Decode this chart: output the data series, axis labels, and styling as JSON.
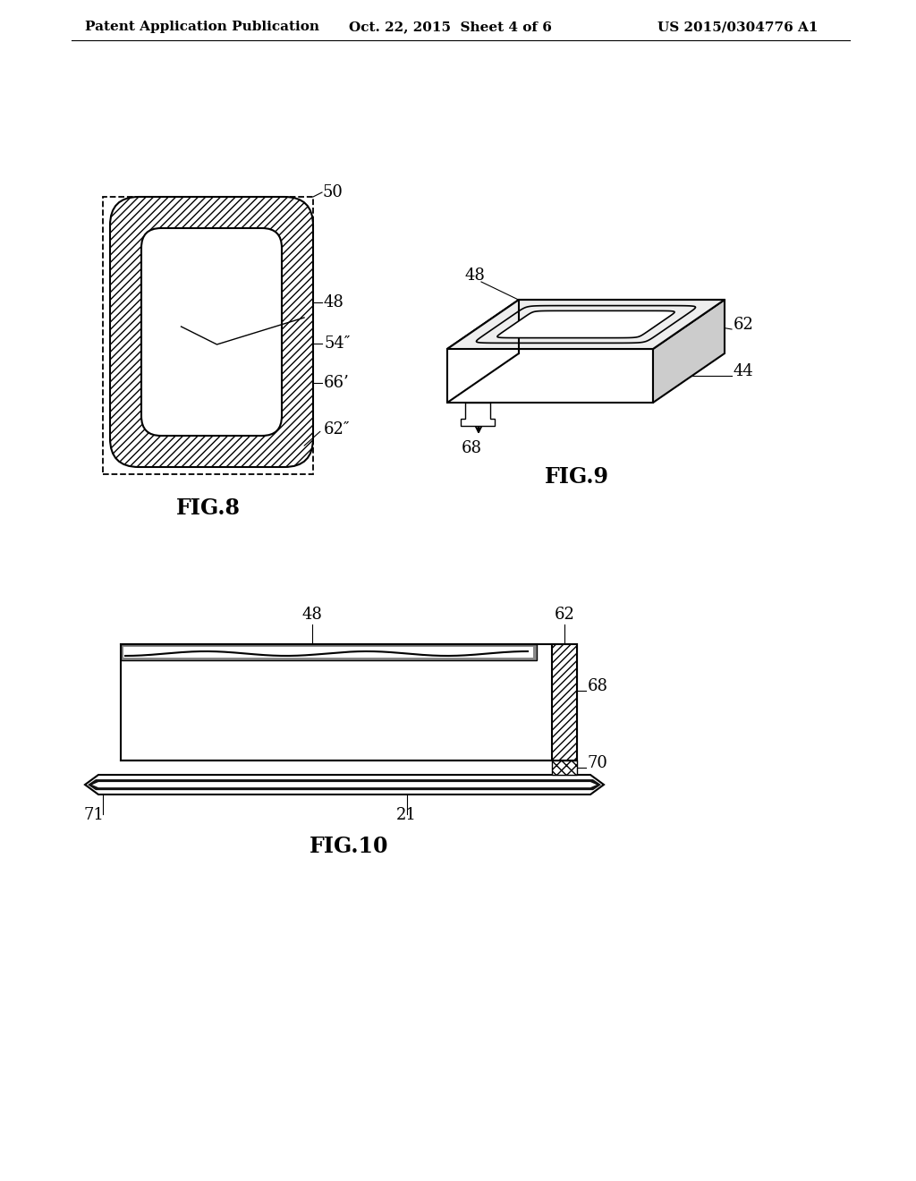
{
  "bg_color": "#ffffff",
  "header_text": "Patent Application Publication",
  "header_date": "Oct. 22, 2015  Sheet 4 of 6",
  "header_patent": "US 2015/0304776 A1",
  "fig8_label": "FIG.8",
  "fig9_label": "FIG.9",
  "fig10_label": "FIG.10",
  "line_color": "#000000",
  "label_fontsize": 13,
  "fig_label_fontsize": 17,
  "header_fontsize": 11
}
